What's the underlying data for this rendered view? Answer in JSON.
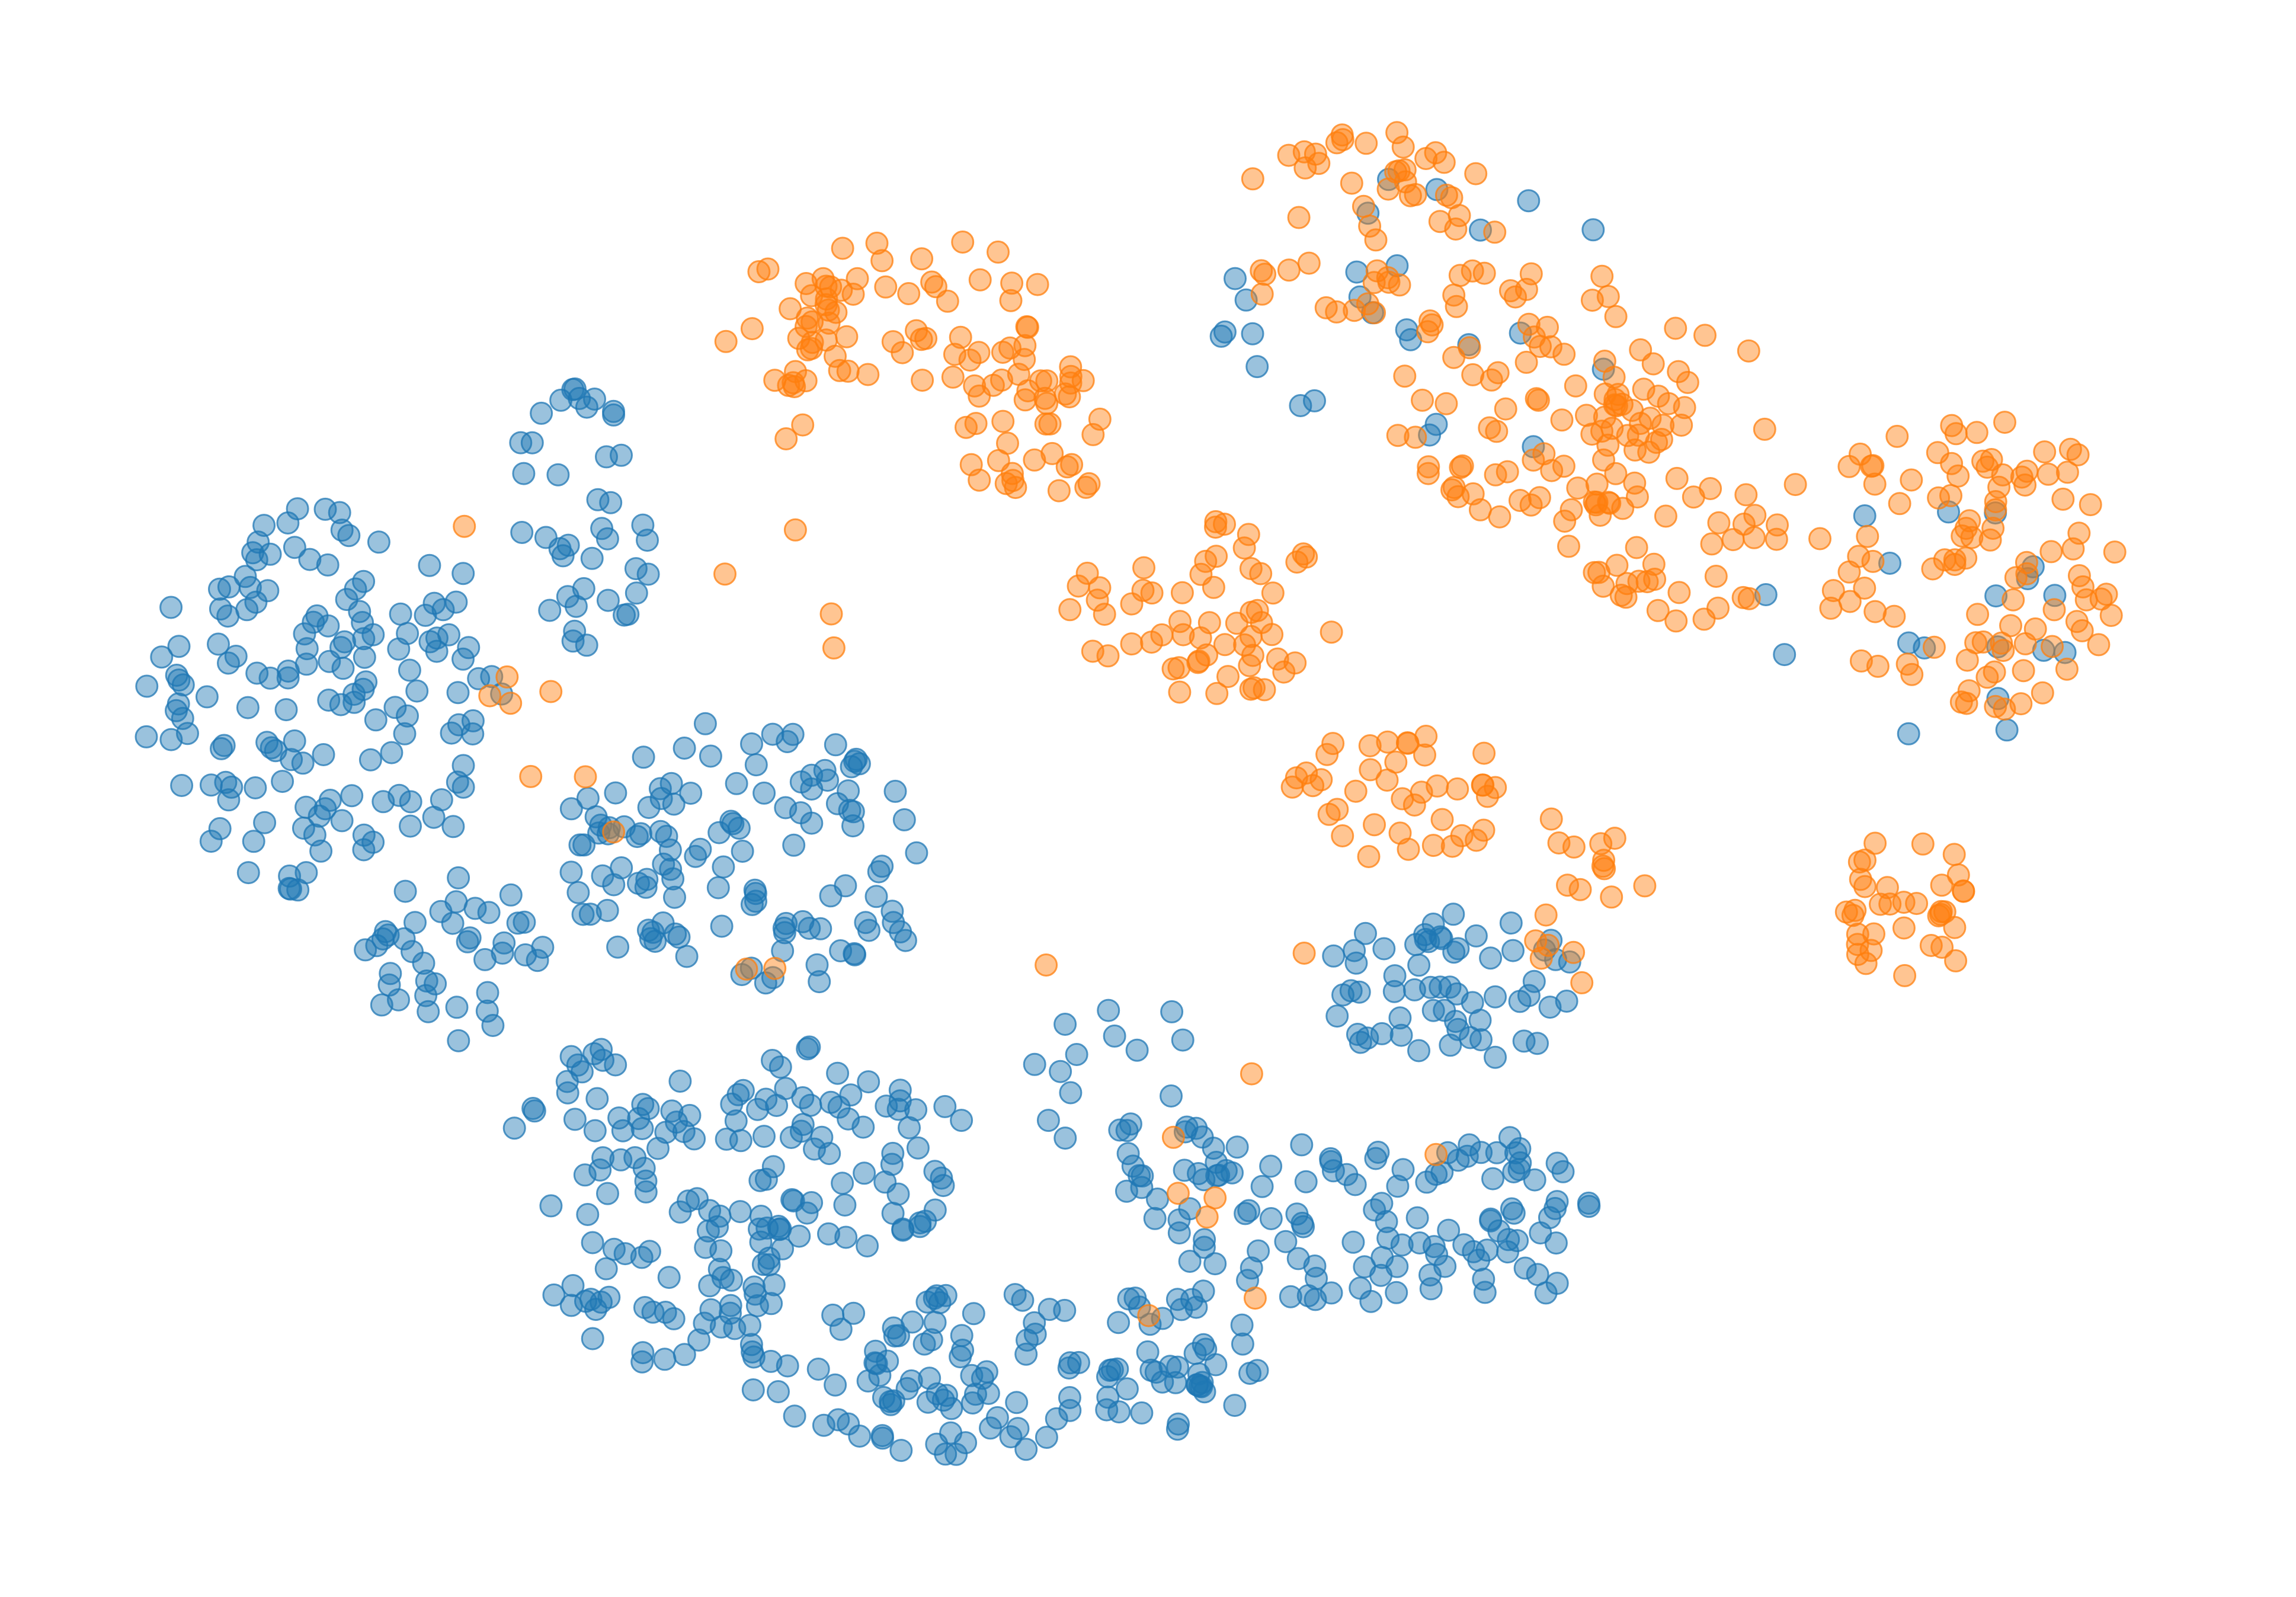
{
  "chart_data": {
    "type": "scatter",
    "title": "",
    "xlabel": "",
    "ylabel": "",
    "axes_visible": false,
    "grid": false,
    "legend": "none",
    "marker": "circle",
    "marker_alpha": 0.45,
    "xlim": [
      0,
      1
    ],
    "ylim": [
      0,
      1
    ],
    "series": [
      {
        "color": "#1f77b4",
        "clusters": [
          {
            "cx": 0.115,
            "cy": 0.43,
            "rx": 0.085,
            "ry": 0.13,
            "n": 150,
            "seed": 11
          },
          {
            "cx": 0.175,
            "cy": 0.6,
            "rx": 0.045,
            "ry": 0.06,
            "n": 40,
            "seed": 12
          },
          {
            "cx": 0.245,
            "cy": 0.72,
            "rx": 0.045,
            "ry": 0.06,
            "n": 40,
            "seed": 13
          },
          {
            "cx": 0.31,
            "cy": 0.54,
            "rx": 0.09,
            "ry": 0.095,
            "n": 120,
            "seed": 14
          },
          {
            "cx": 0.28,
            "cy": 0.82,
            "rx": 0.06,
            "ry": 0.06,
            "n": 60,
            "seed": 15
          },
          {
            "cx": 0.355,
            "cy": 0.73,
            "rx": 0.06,
            "ry": 0.07,
            "n": 70,
            "seed": 16
          },
          {
            "cx": 0.4,
            "cy": 0.88,
            "rx": 0.09,
            "ry": 0.06,
            "n": 90,
            "seed": 17
          },
          {
            "cx": 0.51,
            "cy": 0.87,
            "rx": 0.04,
            "ry": 0.05,
            "n": 40,
            "seed": 18
          },
          {
            "cx": 0.57,
            "cy": 0.78,
            "rx": 0.07,
            "ry": 0.06,
            "n": 60,
            "seed": 19
          },
          {
            "cx": 0.655,
            "cy": 0.78,
            "rx": 0.05,
            "ry": 0.06,
            "n": 50,
            "seed": 20
          },
          {
            "cx": 0.64,
            "cy": 0.62,
            "rx": 0.06,
            "ry": 0.06,
            "n": 60,
            "seed": 21
          },
          {
            "cx": 0.235,
            "cy": 0.31,
            "rx": 0.035,
            "ry": 0.09,
            "n": 40,
            "seed": 22
          },
          {
            "cx": 0.49,
            "cy": 0.7,
            "rx": 0.05,
            "ry": 0.07,
            "n": 30,
            "seed": 23
          },
          {
            "cx": 0.63,
            "cy": 0.18,
            "rx": 0.1,
            "ry": 0.1,
            "n": 26,
            "seed": 24
          },
          {
            "cx": 0.85,
            "cy": 0.38,
            "rx": 0.08,
            "ry": 0.1,
            "n": 18,
            "seed": 25
          }
        ]
      },
      {
        "color": "#ff7f0e",
        "clusters": [
          {
            "cx": 0.39,
            "cy": 0.17,
            "rx": 0.06,
            "ry": 0.05,
            "n": 45,
            "seed": 31
          },
          {
            "cx": 0.445,
            "cy": 0.25,
            "rx": 0.04,
            "ry": 0.05,
            "n": 40,
            "seed": 32
          },
          {
            "cx": 0.525,
            "cy": 0.37,
            "rx": 0.065,
            "ry": 0.06,
            "n": 60,
            "seed": 33
          },
          {
            "cx": 0.615,
            "cy": 0.49,
            "rx": 0.05,
            "ry": 0.05,
            "n": 40,
            "seed": 34
          },
          {
            "cx": 0.6,
            "cy": 0.12,
            "rx": 0.065,
            "ry": 0.07,
            "n": 55,
            "seed": 35
          },
          {
            "cx": 0.68,
            "cy": 0.23,
            "rx": 0.07,
            "ry": 0.09,
            "n": 90,
            "seed": 36
          },
          {
            "cx": 0.745,
            "cy": 0.28,
            "rx": 0.06,
            "ry": 0.1,
            "n": 50,
            "seed": 37
          },
          {
            "cx": 0.88,
            "cy": 0.34,
            "rx": 0.075,
            "ry": 0.1,
            "n": 100,
            "seed": 38
          },
          {
            "cx": 0.85,
            "cy": 0.57,
            "rx": 0.035,
            "ry": 0.05,
            "n": 35,
            "seed": 39
          },
          {
            "cx": 0.33,
            "cy": 0.2,
            "rx": 0.035,
            "ry": 0.06,
            "n": 25,
            "seed": 40
          },
          {
            "cx": 0.7,
            "cy": 0.56,
            "rx": 0.03,
            "ry": 0.06,
            "n": 18,
            "seed": 41
          },
          {
            "cx": 0.25,
            "cy": 0.46,
            "rx": 0.12,
            "ry": 0.2,
            "n": 14,
            "seed": 42
          },
          {
            "cx": 0.53,
            "cy": 0.7,
            "rx": 0.12,
            "ry": 0.15,
            "n": 10,
            "seed": 43
          }
        ]
      }
    ]
  }
}
